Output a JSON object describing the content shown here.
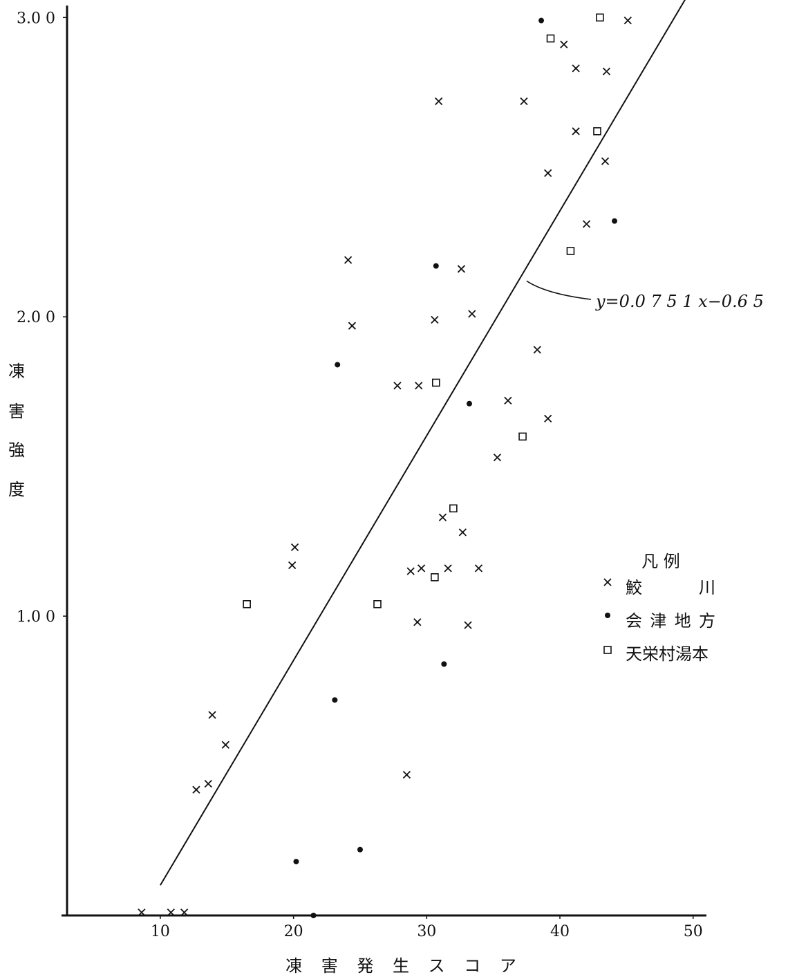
{
  "chart_data": {
    "type": "scatter",
    "xlabel": "凍 害 発 生 ス コ ア",
    "ylabel": [
      "凍",
      "害",
      "強",
      "度"
    ],
    "xlim": [
      3,
      51
    ],
    "ylim": [
      0,
      3.04
    ],
    "x_ticks": [
      {
        "value": 10,
        "label": "10"
      },
      {
        "value": 20,
        "label": "20"
      },
      {
        "value": 30,
        "label": "30"
      },
      {
        "value": 40,
        "label": "40"
      },
      {
        "value": 50,
        "label": "50"
      }
    ],
    "y_ticks": [
      {
        "value": 1.0,
        "label": "1.0 0"
      },
      {
        "value": 2.0,
        "label": "2.0 0"
      },
      {
        "value": 3.0,
        "label": "3.0 0"
      }
    ],
    "grid": false,
    "legend_position": "right",
    "legend_title": "凡 例",
    "regression": {
      "label": "y=0.0 7 5 1 x−0.6 5",
      "slope": 0.0751,
      "intercept": -0.65,
      "x_range": [
        10,
        49.5
      ],
      "label_anchor": [
        37.5,
        2.12
      ]
    },
    "series": [
      {
        "name": "鮫 川",
        "marker": "x",
        "points": [
          [
            8.6,
            0.01
          ],
          [
            10.8,
            0.01
          ],
          [
            11.8,
            0.01
          ],
          [
            12.7,
            0.42
          ],
          [
            13.6,
            0.44
          ],
          [
            13.9,
            0.67
          ],
          [
            14.9,
            0.57
          ],
          [
            19.9,
            1.17
          ],
          [
            20.1,
            1.23
          ],
          [
            24.1,
            2.19
          ],
          [
            24.4,
            1.97
          ],
          [
            27.8,
            1.77
          ],
          [
            28.5,
            0.47
          ],
          [
            28.8,
            1.15
          ],
          [
            29.3,
            0.98
          ],
          [
            29.4,
            1.77
          ],
          [
            29.6,
            1.16
          ],
          [
            30.6,
            1.99
          ],
          [
            30.9,
            2.72
          ],
          [
            31.2,
            1.33
          ],
          [
            31.6,
            1.16
          ],
          [
            32.6,
            2.16
          ],
          [
            32.7,
            1.28
          ],
          [
            33.1,
            0.97
          ],
          [
            33.4,
            2.01
          ],
          [
            33.9,
            1.16
          ],
          [
            35.3,
            1.53
          ],
          [
            36.1,
            1.72
          ],
          [
            37.3,
            2.72
          ],
          [
            38.3,
            1.89
          ],
          [
            39.1,
            2.48
          ],
          [
            39.1,
            1.66
          ],
          [
            40.3,
            2.91
          ],
          [
            41.2,
            2.83
          ],
          [
            41.2,
            2.62
          ],
          [
            42.0,
            2.31
          ],
          [
            43.4,
            2.52
          ],
          [
            43.5,
            2.82
          ],
          [
            45.1,
            2.99
          ]
        ]
      },
      {
        "name": "会 津 地 方",
        "marker": "dot",
        "points": [
          [
            20.2,
            0.18
          ],
          [
            21.5,
            0.0
          ],
          [
            23.1,
            0.72
          ],
          [
            23.3,
            1.84
          ],
          [
            25.0,
            0.22
          ],
          [
            30.7,
            2.17
          ],
          [
            31.3,
            0.84
          ],
          [
            33.2,
            1.71
          ],
          [
            38.6,
            2.99
          ],
          [
            44.1,
            2.32
          ]
        ]
      },
      {
        "name": "天栄村湯本",
        "marker": "square",
        "points": [
          [
            16.5,
            1.04
          ],
          [
            26.3,
            1.04
          ],
          [
            30.6,
            1.13
          ],
          [
            30.7,
            1.78
          ],
          [
            32.0,
            1.36
          ],
          [
            37.2,
            1.6
          ],
          [
            39.3,
            2.93
          ],
          [
            40.8,
            2.22
          ],
          [
            42.8,
            2.62
          ],
          [
            43.0,
            3.0
          ]
        ]
      }
    ]
  }
}
